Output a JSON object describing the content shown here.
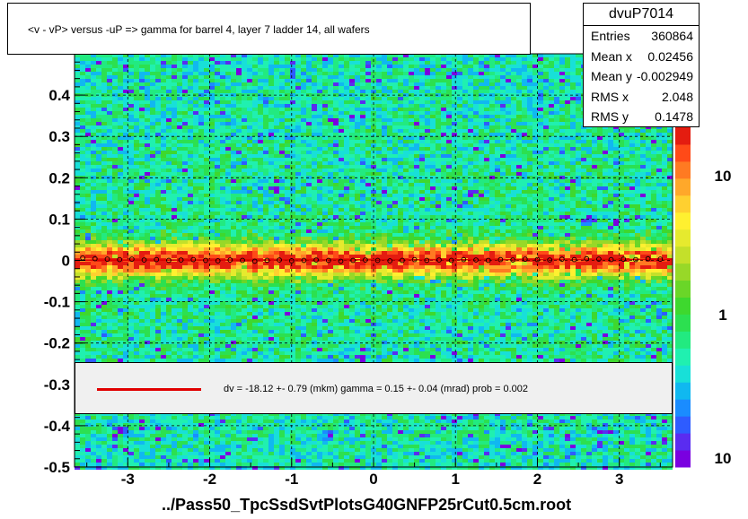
{
  "title": "<v - vP>       versus  -uP =>  gamma for barrel 4, layer 7 ladder 14, all wafers",
  "stats": {
    "name": "dvuP7014",
    "rows": [
      {
        "label": "Entries",
        "value": "360864"
      },
      {
        "label": "Mean x",
        "value": "0.02456"
      },
      {
        "label": "Mean y",
        "value": "-0.002949"
      },
      {
        "label": "RMS x",
        "value": "2.048"
      },
      {
        "label": "RMS y",
        "value": "0.1478"
      }
    ]
  },
  "fit_text": "dv =  -18.12 +-  0.79 (mkm) gamma =    0.15 +-  0.04 (mrad) prob = 0.002",
  "footer": "../Pass50_TpcSsdSvtPlotsG40GNFP25rCut0.5cm.root",
  "colors": {
    "fit_line": "#e00000",
    "profile_marker": "#000000"
  },
  "chart_data": {
    "type": "heatmap",
    "title": "<v - vP>       versus  -uP =>  gamma for barrel 4, layer 7 ladder 14, all wafers",
    "xlabel": "",
    "ylabel": "",
    "xlim": [
      -3.65,
      3.65
    ],
    "ylim": [
      -0.5,
      0.5
    ],
    "x_ticks": [
      -3,
      -2,
      -1,
      0,
      1,
      2,
      3
    ],
    "y_ticks": [
      -0.5,
      -0.4,
      -0.3,
      -0.2,
      -0.1,
      0,
      0.1,
      0.2,
      0.3,
      0.4
    ],
    "grid": true,
    "z_scale": "log",
    "z_ticks": [
      "10",
      "1",
      "10"
    ],
    "band_center_y": 0.0,
    "fit": {
      "dv_mkm": -18.12,
      "dv_err": 0.79,
      "gamma_mrad": 0.15,
      "gamma_err": 0.04,
      "prob": 0.002
    },
    "profile": {
      "x": [
        -3.55,
        -3.4,
        -3.25,
        -3.1,
        -2.95,
        -2.8,
        -2.65,
        -2.5,
        -2.35,
        -2.2,
        -2.05,
        -1.9,
        -1.75,
        -1.6,
        -1.45,
        -1.3,
        -1.15,
        -1.0,
        -0.85,
        -0.7,
        -0.55,
        -0.4,
        -0.25,
        -0.1,
        0.05,
        0.2,
        0.35,
        0.5,
        0.65,
        0.8,
        0.95,
        1.1,
        1.25,
        1.4,
        1.55,
        1.7,
        1.85,
        2.0,
        2.15,
        2.3,
        2.45,
        2.6,
        2.75,
        2.9,
        3.05,
        3.2,
        3.35,
        3.5
      ],
      "y": [
        0.006,
        0.004,
        0.003,
        0.002,
        0.003,
        0.001,
        0.002,
        0.0,
        0.001,
        0.002,
        0.0,
        -0.001,
        0.001,
        0.0,
        -0.002,
        0.0,
        0.001,
        -0.001,
        0.0,
        0.001,
        0.0,
        -0.002,
        0.0,
        0.001,
        0.0,
        -0.001,
        0.0,
        0.002,
        0.0,
        0.001,
        0.0,
        0.002,
        0.001,
        0.0,
        0.002,
        0.001,
        0.003,
        0.002,
        0.001,
        0.003,
        0.002,
        0.004,
        0.003,
        0.002,
        0.003,
        0.002,
        0.004,
        0.003
      ]
    }
  }
}
